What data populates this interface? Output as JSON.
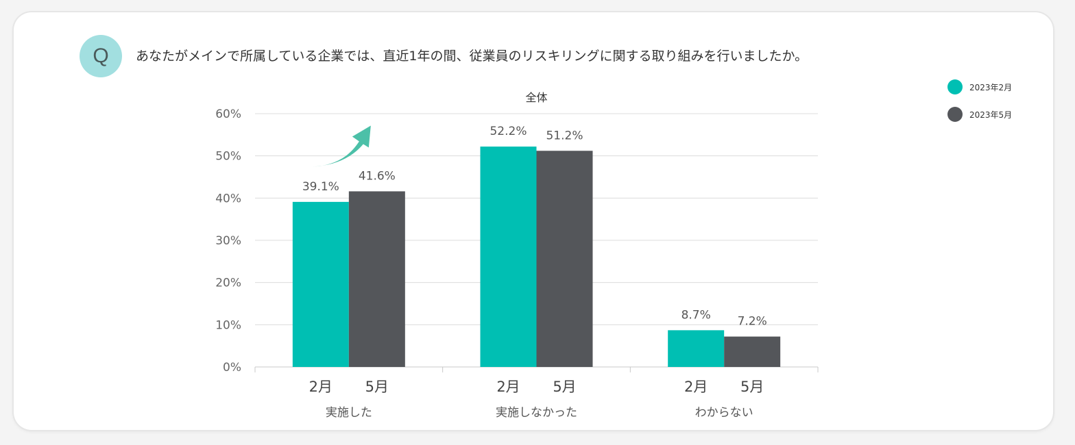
{
  "question": {
    "badge": "Q",
    "text": "あなたがメインで所属している企業では、直近1年の間、従業員のリスキリングに関する取り組みを行いましたか。"
  },
  "chart_data": {
    "type": "bar",
    "title": "全体",
    "categories": [
      "実施した",
      "実施しなかった",
      "わからない"
    ],
    "bar_labels": [
      "2月",
      "5月"
    ],
    "series": [
      {
        "name": "2023年2月",
        "values": [
          39.1,
          52.2,
          8.7
        ],
        "color": "#00bfb3"
      },
      {
        "name": "2023年5月",
        "values": [
          41.6,
          51.2,
          7.2
        ],
        "color": "#54565a"
      }
    ],
    "value_labels": [
      [
        "39.1%",
        "52.2%",
        "8.7%"
      ],
      [
        "41.6%",
        "51.2%",
        "7.2%"
      ]
    ],
    "y_ticks": [
      "0%",
      "10%",
      "20%",
      "30%",
      "40%",
      "50%",
      "60%"
    ],
    "ylim": [
      0,
      60
    ],
    "grid": true,
    "legend_position": "top-right",
    "annotation": "upward-trend-arrow",
    "annotation_color": "#4cc0a8"
  }
}
